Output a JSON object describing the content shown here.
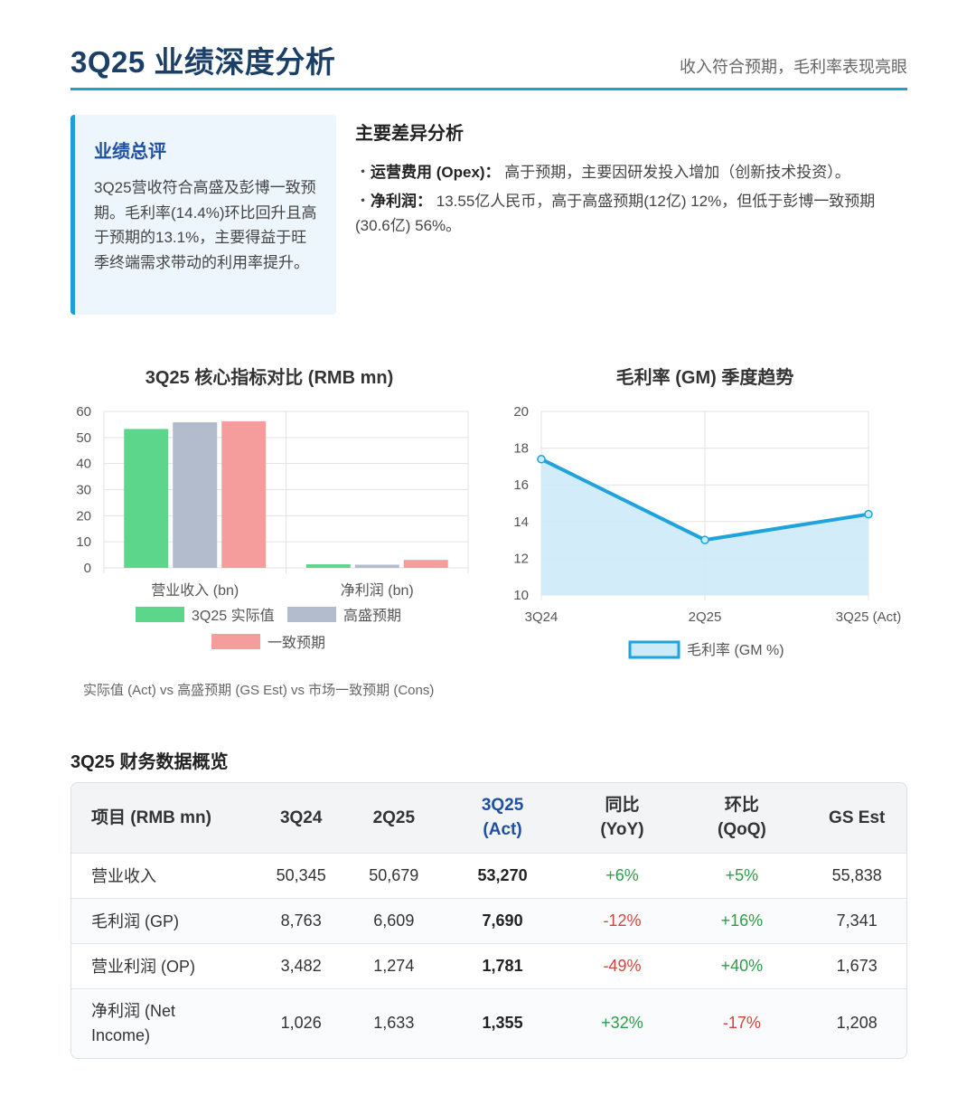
{
  "header": {
    "title": "3Q25 业绩深度分析",
    "subtitle": "收入符合预期，毛利率表现亮眼"
  },
  "summary": {
    "title": "业绩总评",
    "text": "3Q25营收符合高盛及彭博一致预期。毛利率(14.4%)环比回升且高于预期的13.1%，主要得益于旺季终端需求带动的利用率提升。"
  },
  "diff": {
    "title": "主要差异分析",
    "items": [
      {
        "label": "运营费用 (Opex)：",
        "text": "高于预期，主要因研发投入增加（创新技术投资）。"
      },
      {
        "label": "净利润：",
        "text": "13.55亿人民币，高于高盛预期(12亿) 12%，但低于彭博一致预期(30.6亿) 56%。"
      }
    ]
  },
  "colors": {
    "accent": "#1e9fd6",
    "title": "#1b3f66",
    "actual": "#5cd68a",
    "gs": "#b2bccc",
    "cons": "#f59d9d",
    "line": "#1ea3dc",
    "area": "#cdeaf9",
    "positive": "#2e9b4a",
    "negative": "#d0463c"
  },
  "chart_data": [
    {
      "type": "bar",
      "title": "3Q25 核心指标对比 (RMB mn)",
      "categories": [
        "营业收入 (bn)",
        "净利润 (bn)"
      ],
      "series": [
        {
          "name": "3Q25 实际值",
          "values": [
            53.27,
            1.36
          ]
        },
        {
          "name": "高盛预期",
          "values": [
            55.84,
            1.21
          ]
        },
        {
          "name": "一致预期",
          "values": [
            56.2,
            3.06
          ]
        }
      ],
      "ylim": [
        0,
        60
      ],
      "yticks": [
        "0",
        "10",
        "20",
        "30",
        "40",
        "50",
        "60"
      ],
      "grid": true,
      "legend": "bottom"
    },
    {
      "type": "area",
      "title": "毛利率 (GM) 季度趋势",
      "x": [
        "3Q24",
        "2Q25",
        "3Q25 (Act)"
      ],
      "series": [
        {
          "name": "毛利率 (GM %)",
          "values": [
            17.4,
            13.0,
            14.4
          ]
        }
      ],
      "ylim": [
        10,
        20
      ],
      "yticks": [
        "10",
        "12",
        "14",
        "16",
        "18",
        "20"
      ],
      "grid": true,
      "legend": "bottom"
    }
  ],
  "caption": "实际值 (Act) vs 高盛预期 (GS Est) vs 市场一致预期 (Cons)",
  "table": {
    "title": "3Q25 财务数据概览",
    "headers": [
      "项目 (RMB mn)",
      "3Q24",
      "2Q25",
      "3Q25 (Act)",
      "同比 (YoY)",
      "环比 (QoQ)",
      "GS Est"
    ],
    "rows": [
      [
        "营业收入",
        "50,345",
        "50,679",
        "53,270",
        "+6%",
        "+5%",
        "55,838"
      ],
      [
        "毛利润 (GP)",
        "8,763",
        "6,609",
        "7,690",
        "-12%",
        "+16%",
        "7,341"
      ],
      [
        "营业利润 (OP)",
        "3,482",
        "1,274",
        "1,781",
        "-49%",
        "+40%",
        "1,673"
      ],
      [
        "净利润 (Net Income)",
        "1,026",
        "1,633",
        "1,355",
        "+32%",
        "-17%",
        "1,208"
      ]
    ]
  }
}
